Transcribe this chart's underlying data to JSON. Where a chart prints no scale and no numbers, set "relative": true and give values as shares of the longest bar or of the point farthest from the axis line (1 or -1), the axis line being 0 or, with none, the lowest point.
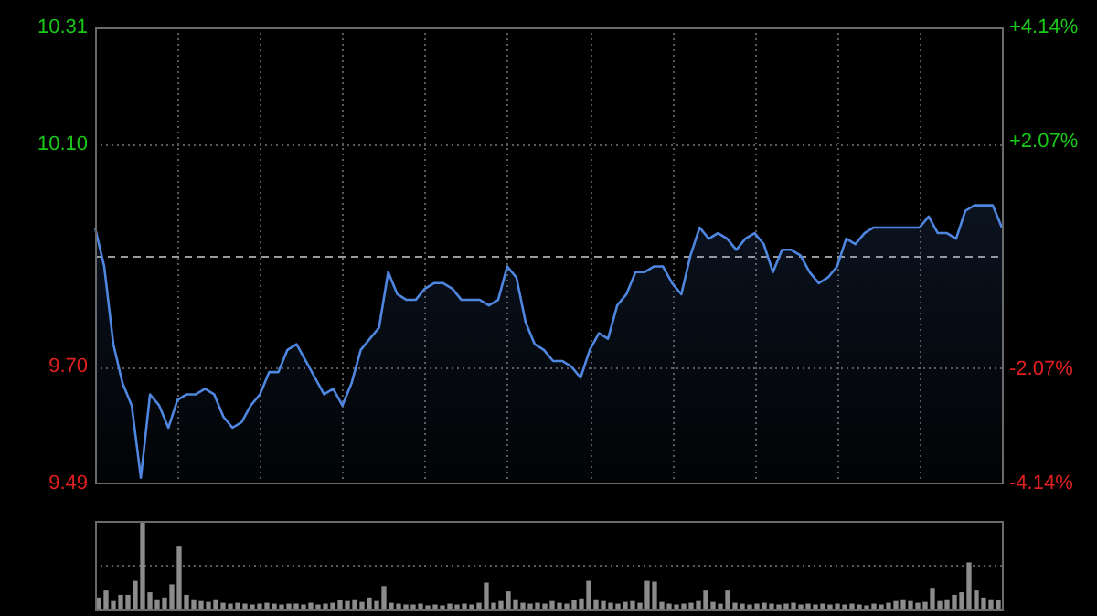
{
  "chart_data": [
    {
      "type": "area",
      "categories": [
        null,
        null,
        null,
        null,
        null,
        null,
        null,
        null,
        null,
        null,
        null,
        null,
        null,
        null,
        null,
        null,
        null,
        null,
        null,
        null,
        null,
        null,
        null,
        null,
        null,
        null,
        null,
        null,
        null,
        null,
        null,
        null,
        null,
        null,
        null,
        null,
        null,
        null,
        null,
        null,
        null,
        null,
        null,
        null,
        null,
        null,
        null,
        null,
        null,
        null,
        null,
        null,
        null,
        null,
        null,
        null,
        null,
        null,
        null,
        null,
        null,
        null,
        null,
        null,
        null,
        null,
        null,
        null,
        null,
        null,
        null,
        null,
        null,
        null,
        null,
        null,
        null,
        null,
        null,
        null,
        null,
        null,
        null,
        null,
        null,
        null,
        null,
        null,
        null,
        null,
        null,
        null,
        null,
        null,
        null,
        null,
        null,
        null,
        null,
        null
      ],
      "values": [
        9.95,
        9.88,
        9.74,
        9.67,
        9.63,
        9.5,
        9.65,
        9.63,
        9.59,
        9.64,
        9.65,
        9.65,
        9.66,
        9.65,
        9.61,
        9.59,
        9.6,
        9.63,
        9.65,
        9.69,
        9.69,
        9.73,
        9.74,
        9.71,
        9.68,
        9.65,
        9.66,
        9.63,
        9.67,
        9.73,
        9.75,
        9.77,
        9.87,
        9.83,
        9.82,
        9.82,
        9.84,
        9.85,
        9.85,
        9.84,
        9.82,
        9.82,
        9.82,
        9.81,
        9.82,
        9.88,
        9.86,
        9.78,
        9.74,
        9.73,
        9.71,
        9.71,
        9.7,
        9.68,
        9.73,
        9.76,
        9.75,
        9.81,
        9.83,
        9.87,
        9.87,
        9.88,
        9.88,
        9.85,
        9.83,
        9.9,
        9.95,
        9.93,
        9.94,
        9.93,
        9.91,
        9.93,
        9.94,
        9.92,
        9.87,
        9.91,
        9.91,
        9.9,
        9.87,
        9.85,
        9.86,
        9.88,
        9.93,
        9.92,
        9.94,
        9.95,
        9.95,
        9.95,
        9.95,
        9.95,
        9.95,
        9.97,
        9.94,
        9.94,
        9.93,
        9.98,
        9.99,
        9.99,
        9.99,
        9.95
      ],
      "color": "#4f86e0",
      "ylim": [
        9.49,
        10.31
      ],
      "yticks": [
        9.49,
        {
          "value": 9.7,
          "label": "9.70"
        },
        {
          "value": 10.1,
          "label": "10.10"
        },
        10.31
      ],
      "y2lim": [
        -4.14,
        4.14
      ],
      "y2ticks": [
        {
          "value": -4.14,
          "label": "-4.14%"
        },
        {
          "value": -2.07,
          "label": "-2.07%"
        },
        {
          "value": 2.07,
          "label": "+2.07%"
        },
        {
          "value": 4.14,
          "label": "+4.14%"
        }
      ],
      "ref_lines": [
        {
          "axis": "y",
          "value": 9.9,
          "line_style": "dashed"
        }
      ],
      "grid": true
    },
    {
      "type": "bar",
      "relative": true,
      "color": "#8c8c8c",
      "ref_lines": [
        {
          "axis": "y",
          "value": 0.5,
          "line_style": "dotted",
          "color": "#5a5a5a"
        }
      ],
      "categories": [
        null,
        null,
        null,
        null,
        null,
        null,
        null,
        null,
        null,
        null,
        null,
        null,
        null,
        null,
        null,
        null,
        null,
        null,
        null,
        null,
        null,
        null,
        null,
        null,
        null,
        null,
        null,
        null,
        null,
        null,
        null,
        null,
        null,
        null,
        null,
        null,
        null,
        null,
        null,
        null,
        null,
        null,
        null,
        null,
        null,
        null,
        null,
        null,
        null,
        null,
        null,
        null,
        null,
        null,
        null,
        null,
        null,
        null,
        null,
        null,
        null,
        null,
        null,
        null,
        null,
        null,
        null,
        null,
        null,
        null,
        null,
        null,
        null,
        null,
        null,
        null,
        null,
        null,
        null,
        null,
        null,
        null,
        null,
        null,
        null,
        null,
        null,
        null,
        null,
        null,
        null,
        null,
        null,
        null,
        null,
        null,
        null,
        null,
        null,
        null,
        null,
        null,
        null,
        null,
        null,
        null,
        null,
        null,
        null,
        null,
        null,
        null,
        null,
        null,
        null,
        null,
        null,
        null,
        null,
        null,
        null,
        null,
        null,
        null
      ],
      "values": [
        0.12,
        0.2,
        0.08,
        0.15,
        0.15,
        0.31,
        1,
        0.18,
        0.1,
        0.12,
        0.27,
        0.71,
        0.15,
        0.1,
        0.08,
        0.07,
        0.1,
        0.06,
        0.05,
        0.06,
        0.05,
        0.04,
        0.05,
        0.06,
        0.05,
        0.04,
        0.05,
        0.05,
        0.04,
        0.06,
        0.04,
        0.05,
        0.06,
        0.09,
        0.08,
        0.1,
        0.07,
        0.12,
        0.08,
        0.25,
        0.06,
        0.05,
        0.04,
        0.04,
        0.05,
        0.03,
        0.04,
        0.03,
        0.05,
        0.04,
        0.05,
        0.04,
        0.06,
        0.29,
        0.06,
        0.08,
        0.19,
        0.1,
        0.06,
        0.05,
        0.06,
        0.05,
        0.08,
        0.06,
        0.05,
        0.09,
        0.11,
        0.31,
        0.1,
        0.08,
        0.06,
        0.05,
        0.07,
        0.08,
        0.06,
        0.31,
        0.3,
        0.07,
        0.05,
        0.04,
        0.05,
        0.06,
        0.08,
        0.2,
        0.07,
        0.05,
        0.2,
        0.06,
        0.05,
        0.04,
        0.05,
        0.06,
        0.05,
        0.04,
        0.05,
        0.06,
        0.04,
        0.05,
        0.04,
        0.05,
        0.04,
        0.05,
        0.04,
        0.05,
        0.04,
        0.03,
        0.05,
        0.04,
        0.06,
        0.08,
        0.1,
        0.08,
        0.06,
        0.07,
        0.23,
        0.08,
        0.1,
        0.15,
        0.18,
        0.52,
        0.2,
        0.12,
        0.1,
        0.09
      ]
    }
  ]
}
